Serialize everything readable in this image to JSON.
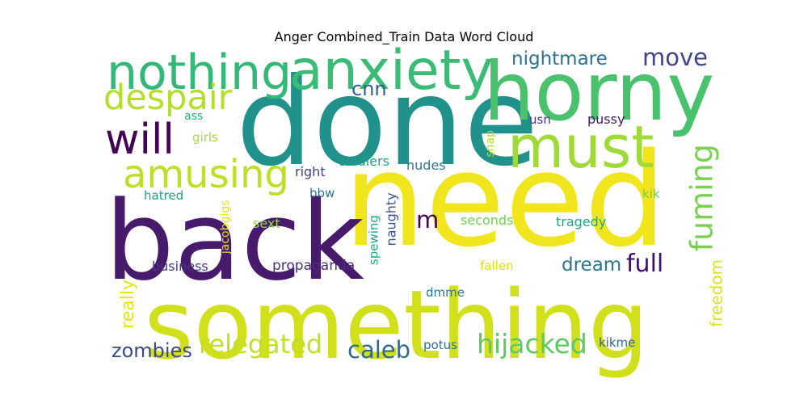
{
  "chart_data": {
    "type": "wordcloud",
    "title": "Anger Combined_Train Data Word Cloud",
    "words": [
      {
        "text": "need",
        "color": "#f1e51d"
      },
      {
        "text": "done",
        "color": "#21918c"
      },
      {
        "text": "back",
        "color": "#481a6c"
      },
      {
        "text": "something",
        "color": "#d0e11c"
      },
      {
        "text": "horny",
        "color": "#4ac16d"
      },
      {
        "text": "anxiety",
        "color": "#3bbb75"
      },
      {
        "text": "nothing",
        "color": "#35b779"
      },
      {
        "text": "must",
        "color": "#a0da39"
      },
      {
        "text": "will",
        "color": "#440154"
      },
      {
        "text": "amusing",
        "color": "#bddf26"
      },
      {
        "text": "despair",
        "color": "#b5de2b"
      },
      {
        "text": "fuming",
        "color": "#7ad151"
      },
      {
        "text": "hijacked",
        "color": "#5ec962"
      },
      {
        "text": "relegated",
        "color": "#c2df23"
      },
      {
        "text": "zombies",
        "color": "#3e4989"
      },
      {
        "text": "caleb",
        "color": "#31688e"
      },
      {
        "text": "dream",
        "color": "#2a788e"
      },
      {
        "text": "full",
        "color": "#3b0f70"
      },
      {
        "text": "move",
        "color": "#414487"
      },
      {
        "text": "nightmare",
        "color": "#2c728e"
      },
      {
        "text": "cnn",
        "color": "#355f8d"
      },
      {
        "text": "m",
        "color": "#440154"
      },
      {
        "text": "freedom",
        "color": "#dde318"
      },
      {
        "text": "really",
        "color": "#e5e419"
      },
      {
        "text": "soldiers",
        "color": "#1f9e89"
      },
      {
        "text": "nudes",
        "color": "#287d8e"
      },
      {
        "text": "right",
        "color": "#424086"
      },
      {
        "text": "bbw",
        "color": "#2d708e"
      },
      {
        "text": "hatred",
        "color": "#1fa187"
      },
      {
        "text": "jacobgigs",
        "color": "#e2e418"
      },
      {
        "text": "sext",
        "color": "#95d840"
      },
      {
        "text": "business",
        "color": "#443983"
      },
      {
        "text": "propaganda",
        "color": "#472d7b"
      },
      {
        "text": "spewing",
        "color": "#22a884"
      },
      {
        "text": "naughty",
        "color": "#3b528b"
      },
      {
        "text": "seconds",
        "color": "#73d056"
      },
      {
        "text": "tragedy",
        "color": "#20a386"
      },
      {
        "text": "fallen",
        "color": "#d8e219"
      },
      {
        "text": "dmme",
        "color": "#2a768e"
      },
      {
        "text": "potus",
        "color": "#2f6c8e"
      },
      {
        "text": "kikme",
        "color": "#33638d"
      },
      {
        "text": "kik",
        "color": "#6ccd5a"
      },
      {
        "text": "snap",
        "color": "#b0dd2f"
      },
      {
        "text": "usn",
        "color": "#46337e"
      },
      {
        "text": "pussy",
        "color": "#48186a"
      },
      {
        "text": "ass",
        "color": "#26ad81"
      },
      {
        "text": "girls",
        "color": "#a5db36"
      }
    ]
  }
}
